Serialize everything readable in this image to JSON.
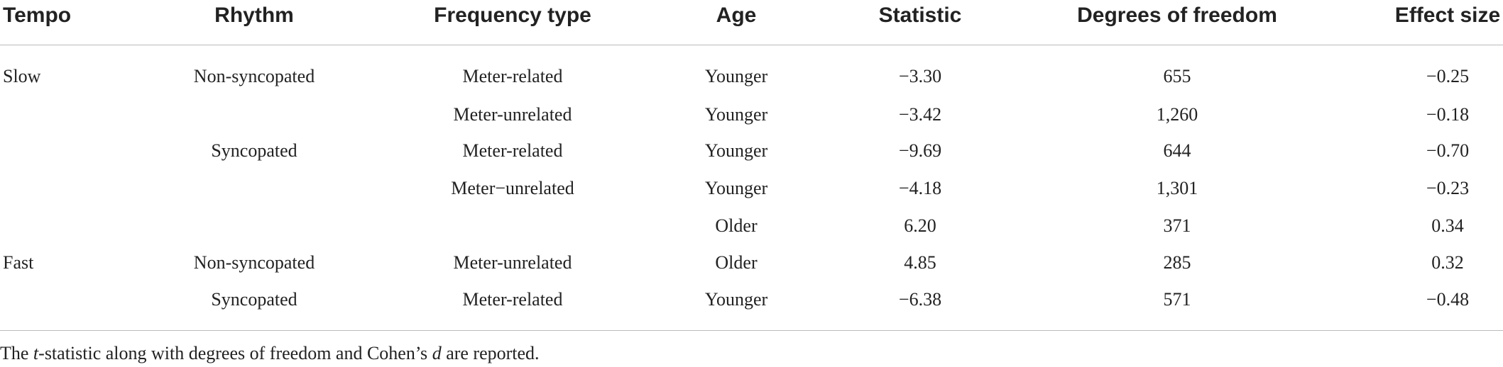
{
  "table": {
    "header": [
      "Tempo",
      "Rhythm",
      "Frequency type",
      "Age",
      "Statistic",
      "Degrees of freedom",
      "Effect size"
    ],
    "rows": [
      [
        "Slow",
        "Non-syncopated",
        "Meter-related",
        "Younger",
        "−3.30",
        "655",
        "−0.25"
      ],
      [
        null,
        null,
        "Meter-unrelated",
        "Younger",
        "−3.42",
        "1,260",
        "−0.18"
      ],
      [
        null,
        "Syncopated",
        "Meter-related",
        "Younger",
        "−9.69",
        "644",
        "−0.70"
      ],
      [
        null,
        null,
        "Meter−unrelated",
        "Younger",
        "−4.18",
        "1,301",
        "−0.23"
      ],
      [
        null,
        null,
        null,
        "Older",
        "6.20",
        "371",
        "0.34"
      ],
      [
        "Fast",
        "Non-syncopated",
        "Meter-unrelated",
        "Older",
        "4.85",
        "285",
        "0.32"
      ],
      [
        null,
        "Syncopated",
        "Meter-related",
        "Younger",
        "−6.38",
        "571",
        "−0.48"
      ]
    ]
  },
  "footnote": [
    "The ",
    "t",
    "-statistic along with degrees of freedom and Cohen’s ",
    "d",
    " are reported."
  ]
}
